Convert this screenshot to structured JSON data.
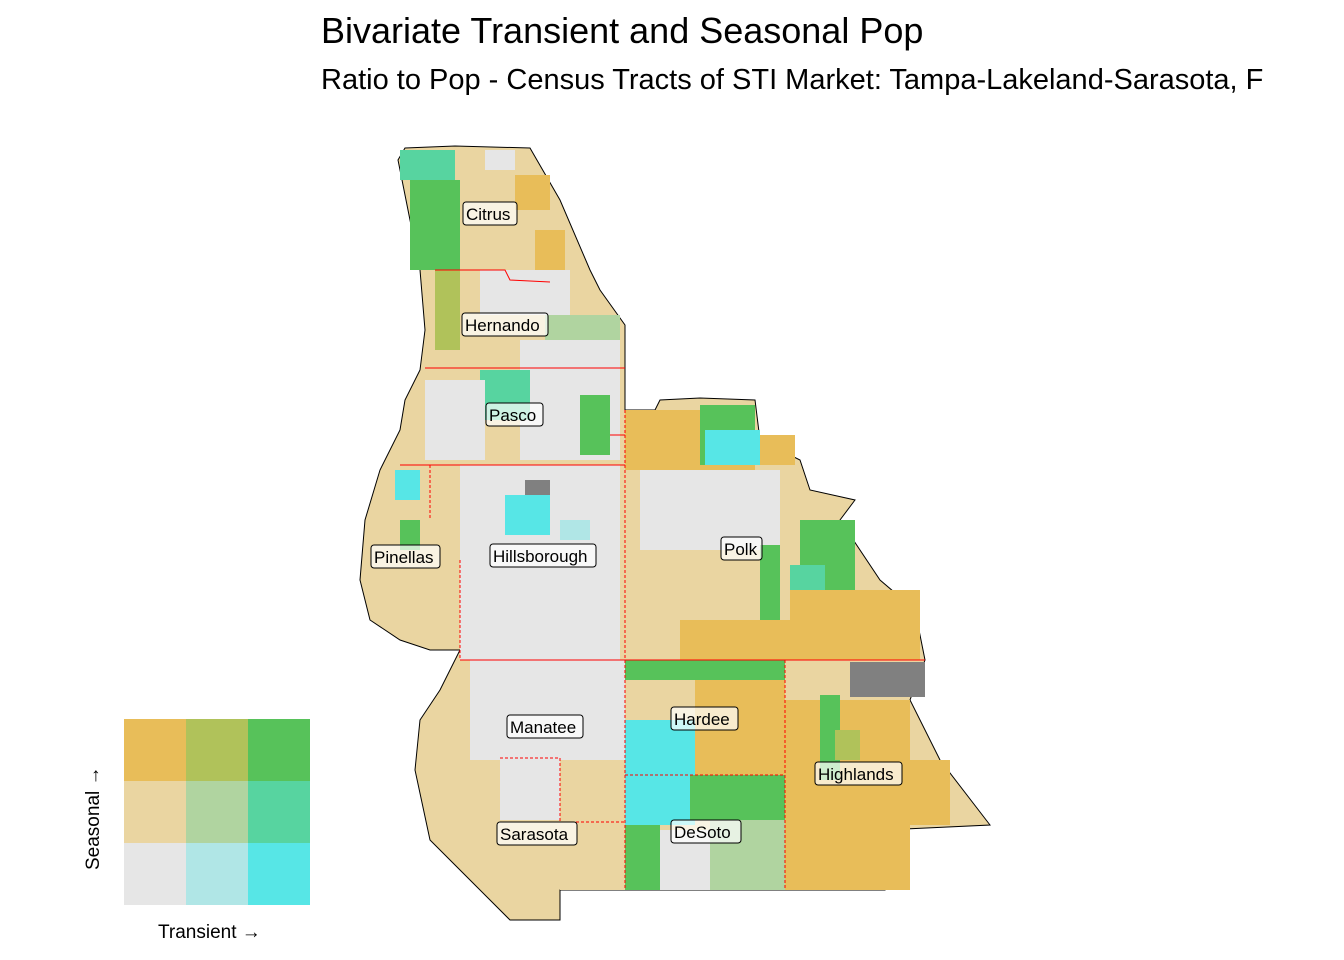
{
  "title": "Bivariate Transient and Seasonal Pop",
  "subtitle": "Ratio to Pop - Census Tracts of STI Market: Tampa-Lakeland-Sarasota, F",
  "counties": [
    {
      "name": "Citrus"
    },
    {
      "name": "Hernando"
    },
    {
      "name": "Pasco"
    },
    {
      "name": "Pinellas"
    },
    {
      "name": "Hillsborough"
    },
    {
      "name": "Polk"
    },
    {
      "name": "Manatee"
    },
    {
      "name": "Hardee"
    },
    {
      "name": "Sarasota"
    },
    {
      "name": "DeSoto"
    },
    {
      "name": "Highlands"
    }
  ],
  "legend": {
    "x_label": "Transient →",
    "y_label": "Seasonal →",
    "grid": [
      [
        "#e8bd59",
        "#b0c25a",
        "#57c25a"
      ],
      [
        "#ead5a1",
        "#b0d4a0",
        "#57d4a0"
      ],
      [
        "#e6e6e6",
        "#b0e6e6",
        "#57e6e6"
      ]
    ]
  },
  "colors": {
    "no_data": "#808080",
    "boundary": "#ff0000",
    "outline": "#000000"
  }
}
